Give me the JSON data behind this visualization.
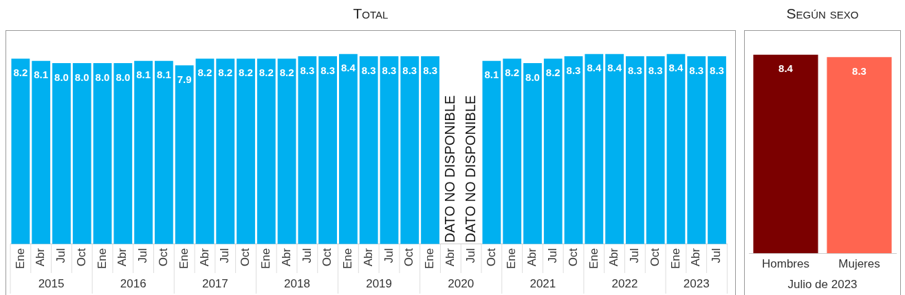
{
  "chart_data": [
    {
      "type": "bar",
      "title": "Total",
      "categories": [
        "Ene",
        "Abr",
        "Jul",
        "Oct",
        "Ene",
        "Abr",
        "Jul",
        "Oct",
        "Ene",
        "Abr",
        "Jul",
        "Oct",
        "Ene",
        "Abr",
        "Jul",
        "Oct",
        "Ene",
        "Abr",
        "Jul",
        "Oct",
        "Ene",
        "Abr",
        "Jul",
        "Oct",
        "Ene",
        "Abr",
        "Jul",
        "Oct",
        "Ene",
        "Abr",
        "Jul",
        "Oct",
        "Ene",
        "Abr",
        "Jul"
      ],
      "values": [
        8.2,
        8.1,
        8.0,
        8.0,
        8.0,
        8.0,
        8.1,
        8.1,
        7.9,
        8.2,
        8.2,
        8.2,
        8.2,
        8.2,
        8.3,
        8.3,
        8.4,
        8.3,
        8.3,
        8.3,
        8.3,
        null,
        null,
        8.1,
        8.2,
        8.0,
        8.2,
        8.3,
        8.4,
        8.4,
        8.3,
        8.3,
        8.4,
        8.3,
        8.3
      ],
      "value_labels": [
        "8.2",
        "8.1",
        "8.0",
        "8.0",
        "8.0",
        "8.0",
        "8.1",
        "8.1",
        "7.9",
        "8.2",
        "8.2",
        "8.2",
        "8.2",
        "8.2",
        "8.3",
        "8.3",
        "8.4",
        "8.3",
        "8.3",
        "8.3",
        "8.3",
        "DATO NO DISPONIBLE",
        "DATO NO DISPONIBLE",
        "8.1",
        "8.2",
        "8.0",
        "8.2",
        "8.3",
        "8.4",
        "8.4",
        "8.3",
        "8.3",
        "8.4",
        "8.3",
        "8.3"
      ],
      "color": "#00b0f0",
      "annotations": [
        "2015",
        "2016",
        "2017",
        "2018",
        "2019",
        "2020",
        "2021",
        "2022",
        "2023"
      ],
      "grid": false,
      "legend": false,
      "tick_labels": "x"
    },
    {
      "type": "bar",
      "title": "Según sexo",
      "categories": [
        "Hombres",
        "Mujeres"
      ],
      "values": [
        8.4,
        8.3
      ],
      "colors": [
        "#7b0000",
        "#ff6550"
      ],
      "xlabel": "Julio de 2023",
      "data_labels": true,
      "grid": false,
      "legend": false,
      "tick_labels": "x"
    }
  ]
}
